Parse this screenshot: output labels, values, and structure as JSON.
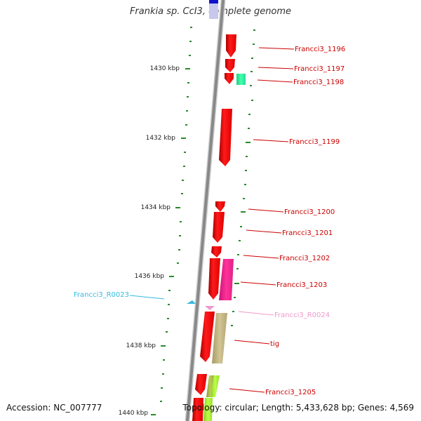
{
  "title": "Frankia sp. CcI3, complete genome",
  "footer": {
    "accession": "Accession: NC_007777",
    "summary": "Topology: circular; Length: 5,433,628 bp; Genes: 4,569"
  },
  "colors": {
    "protein_gene": "#ff0000",
    "rna_label": "#33bbdd",
    "backbone": "#888888",
    "tick": "#228822"
  },
  "kbp_labels": [
    "1430 kbp",
    "1432 kbp",
    "1434 kbp",
    "1436 kbp",
    "1438 kbp",
    "1440 kbp"
  ],
  "features": [
    {
      "label": "Francci3_1196",
      "color": "#ff0000"
    },
    {
      "label": "Francci3_1197",
      "color": "#ff0000"
    },
    {
      "label": "Francci3_1198",
      "color": "#cc0000"
    },
    {
      "label": "Francci3_1199",
      "color": "#cc0000"
    },
    {
      "label": "Francci3_1200",
      "color": "#cc0000"
    },
    {
      "label": "Francci3_1201",
      "color": "#cc0000"
    },
    {
      "label": "Francci3_1202",
      "color": "#cc0000"
    },
    {
      "label": "Francci3_1203",
      "color": "#cc0000"
    },
    {
      "label": "Francci3_R0023",
      "color": "#33bbdd"
    },
    {
      "label": "Francci3_R0024",
      "color": "#ee99cc"
    },
    {
      "label": "tig",
      "color": "#cc0000"
    },
    {
      "label": "Francci3_1205",
      "color": "#cc0000"
    }
  ]
}
